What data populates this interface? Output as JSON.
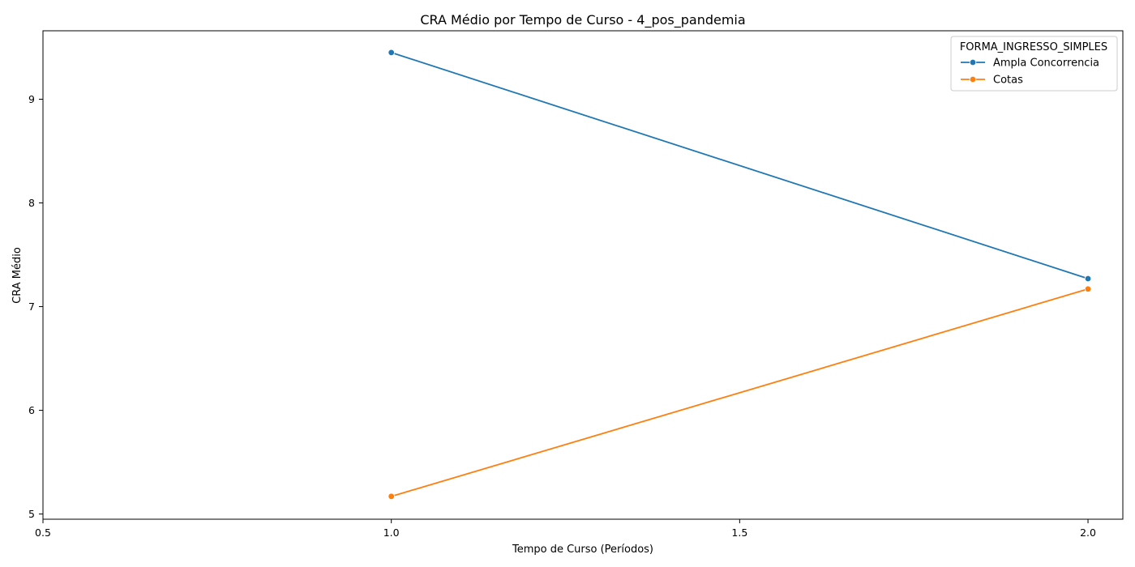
{
  "chart_data": {
    "type": "line",
    "title": "CRA Médio por Tempo de Curso - 4_pos_pandemia",
    "xlabel": "Tempo de Curso (Períodos)",
    "ylabel": "CRA Médio",
    "xlim": [
      0.5,
      2.05
    ],
    "ylim": [
      4.95,
      9.66
    ],
    "x_ticks": [
      0.5,
      1.0,
      1.5,
      2.0
    ],
    "x_tick_labels": [
      "0.5",
      "1.0",
      "1.5",
      "2.0"
    ],
    "y_ticks": [
      5,
      6,
      7,
      8,
      9
    ],
    "y_tick_labels": [
      "5",
      "6",
      "7",
      "8",
      "9"
    ],
    "grid": false,
    "legend": {
      "title": "FORMA_INGRESSO_SIMPLES",
      "placement": "top-right"
    },
    "series": [
      {
        "name": "Ampla Concorrencia",
        "color": "#1f77b4",
        "x": [
          1.0,
          2.0
        ],
        "y": [
          9.45,
          7.27
        ]
      },
      {
        "name": "Cotas",
        "color": "#ff7f0e",
        "x": [
          1.0,
          2.0
        ],
        "y": [
          5.17,
          7.17
        ]
      }
    ]
  }
}
